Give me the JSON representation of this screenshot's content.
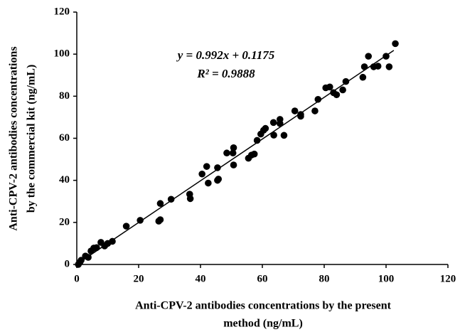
{
  "chart_data": {
    "type": "scatter",
    "x_label": [
      "Anti-CPV-2 antibodies concentrations by the present",
      "method (ng/mL)"
    ],
    "y_label": [
      "Anti-CPV-2 antibodies concentrations",
      "by the commercial kit (ng/mL)"
    ],
    "annotations": [
      "y = 0.992x + 0.1175",
      "R² = 0.9888"
    ],
    "trendline": {
      "slope": 0.992,
      "intercept": 0.1175,
      "x_range": [
        0,
        102.5
      ]
    },
    "color": "#000000",
    "xlim": [
      0,
      120
    ],
    "xticks": [
      0,
      20,
      40,
      60,
      80,
      100,
      120
    ],
    "ylim": [
      0,
      120
    ],
    "yticks": [
      0,
      20,
      40,
      60,
      80,
      100,
      120
    ],
    "grid": false,
    "x": [
      0.5,
      1,
      1.4,
      2.8,
      3.7,
      4.6,
      5.5,
      6.4,
      7.8,
      9,
      10,
      11.5,
      16,
      20.5,
      27,
      26.5,
      27,
      30.5,
      36.5,
      36.7,
      40.5,
      42,
      42.5,
      45.5,
      45.8,
      45.5,
      48.5,
      50.5,
      50.7,
      50.7,
      55.5,
      56.5,
      57.4,
      58.3,
      59.5,
      60.4,
      61,
      63.7,
      63.6,
      65.7,
      65.7,
      67,
      70.5,
      72.4,
      72.4,
      77,
      78,
      80.5,
      81.8,
      83,
      84,
      86,
      87,
      92.5,
      93,
      94.3,
      96,
      97.4,
      100,
      101,
      103
    ],
    "y": [
      0,
      1,
      2,
      4,
      3.4,
      6.4,
      7.8,
      8,
      10.5,
      8.8,
      10,
      11,
      18.2,
      21,
      29,
      20.6,
      21.3,
      31,
      33.4,
      31.3,
      43,
      46.6,
      38.7,
      46,
      40.6,
      40,
      53,
      53,
      55.5,
      47.3,
      50.5,
      52,
      52.5,
      59,
      62,
      63.8,
      64.7,
      61.5,
      67.5,
      69,
      67,
      61.4,
      73,
      71.3,
      70.5,
      73,
      78.5,
      84,
      84.4,
      81.7,
      80.7,
      83,
      87,
      89,
      94,
      99,
      94,
      94.3,
      99,
      94,
      105
    ]
  }
}
